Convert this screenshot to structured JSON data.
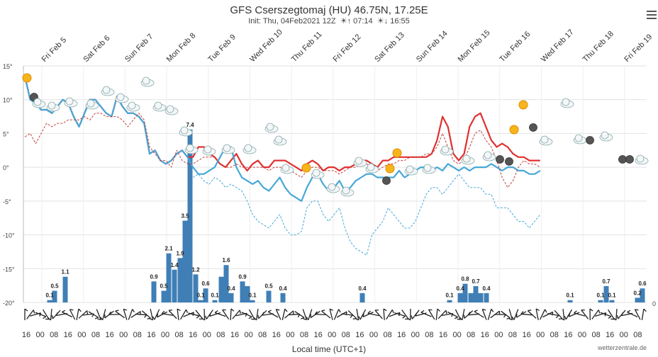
{
  "header": {
    "title": "GFS Cserszegtomaj (HU) 46.75N, 17.25E",
    "init": "Init: Thu, 04Feb2021 12Z",
    "sunrise": "07:14",
    "sunset": "16:55"
  },
  "footer": {
    "xlabel": "Local time (UTC+1)",
    "credit": "wetterzentrale.de"
  },
  "chart_data": {
    "type": "line",
    "title": "GFS Cserszegtomaj (HU) 46.75N, 17.25E",
    "xlabel": "Local time (UTC+1)",
    "day_labels": [
      "Fri Feb 5",
      "Sat Feb 6",
      "Sun Feb 7",
      "Mon Feb 8",
      "Tue Feb 9",
      "Wed Feb 10",
      "Thu Feb 11",
      "Fri Feb 12",
      "Sat Feb 13",
      "Sun Feb 14",
      "Mon Feb 15",
      "Tue Feb 16",
      "Wed Feb 17",
      "Thu Feb 18",
      "Fri Feb 19"
    ],
    "hour_ticks": [
      "16",
      "00",
      "08",
      "16",
      "00",
      "08",
      "16",
      "00",
      "08",
      "16",
      "00",
      "08",
      "16",
      "00",
      "08",
      "16",
      "00",
      "08",
      "16",
      "00",
      "08",
      "16",
      "00",
      "08",
      "16",
      "00",
      "08",
      "16",
      "00",
      "08",
      "16",
      "00",
      "08",
      "16",
      "00",
      "08",
      "16",
      "00",
      "08",
      "16",
      "00",
      "08",
      "16",
      "00",
      "08"
    ],
    "y_ticks": [
      "15°",
      "10°",
      "5°",
      "0°",
      "-5°",
      "-10°",
      "-15°",
      "-20°"
    ],
    "ylim": [
      -20,
      15
    ],
    "right_axis_label": "0",
    "hours_start": 16,
    "step_hours": 6,
    "series": [
      {
        "name": "Temperature 2m (°C)",
        "color": "#e03030",
        "values": [
          13.5,
          10,
          9.5,
          8.5,
          8.5,
          8,
          9,
          10,
          9.5,
          7.5,
          6,
          8,
          10,
          10,
          9,
          8,
          7.5,
          10.5,
          9,
          8,
          8,
          7.5,
          6.5,
          2,
          2.5,
          1,
          0.5,
          1,
          2,
          2.5,
          1.5,
          1.5,
          3,
          3,
          2,
          1.5,
          0.5,
          0,
          1,
          2,
          0.5,
          -0.5,
          0.5,
          1,
          0,
          0,
          1,
          1,
          1,
          0.5,
          0,
          -0.5,
          0.5,
          1,
          0.5,
          -0.5,
          0,
          0,
          -0.5,
          0,
          0,
          0.5,
          1,
          1,
          0.5,
          0,
          1,
          1,
          1.5,
          1.5,
          1.5,
          1.5,
          1.5,
          1.5,
          1.5,
          2,
          4,
          7.5,
          6,
          2,
          1,
          2,
          6,
          7.5,
          8,
          6,
          4,
          3,
          3.5,
          3,
          2,
          1.5,
          1.5,
          1,
          1,
          1
        ]
      },
      {
        "name": "Temperature 850hPa (°C)",
        "color": "#46a8d8",
        "values": [
          13.5,
          10,
          9.5,
          8.5,
          8.5,
          8,
          9,
          10,
          9.5,
          7.5,
          6,
          8,
          10,
          10,
          9,
          8,
          7.5,
          10.5,
          9,
          8,
          8,
          7.5,
          6.5,
          2,
          2.5,
          1,
          0.5,
          1,
          2,
          2.5,
          1.5,
          0,
          -1,
          -1,
          -0.5,
          0,
          1.5,
          3,
          3,
          0,
          -1.5,
          -2,
          -2.5,
          -2,
          -3,
          -3.5,
          -2.5,
          -1.5,
          -3,
          -4,
          -4.5,
          -5,
          -3,
          -1.5,
          -1,
          -2.5,
          -3.5,
          -3,
          -2,
          -3.5,
          -3,
          -2,
          -1.5,
          -1,
          -1,
          -1.5,
          -1.5,
          -1.5,
          -1.5,
          -0.5,
          -1.5,
          -1,
          -0.5,
          0,
          0,
          -0.5,
          0,
          -0.5,
          0.5,
          0,
          -0.5,
          0,
          -0.5,
          0,
          0,
          0,
          0.5,
          0,
          -0.5,
          0,
          0,
          -0.5,
          -0.5,
          -1,
          -1,
          -0.5
        ]
      },
      {
        "name": "Dew point (°C)",
        "color": "#c04040",
        "dashed": true,
        "values": [
          4.5,
          5,
          3.5,
          5,
          6.5,
          6,
          6.5,
          6.5,
          7,
          7,
          7,
          7.5,
          7,
          8,
          8,
          7.5,
          7.5,
          7.5,
          7,
          6,
          7,
          8,
          7,
          3,
          2,
          1,
          1,
          0,
          2.5,
          1,
          0.5,
          0.5,
          1,
          1.5,
          1.5,
          1.5,
          0.5,
          0,
          0,
          0.5,
          0,
          0,
          0,
          0,
          0,
          -0.5,
          0,
          0,
          0,
          -0.5,
          -1,
          -1.5,
          -0.5,
          0,
          0,
          -0.5,
          -0.5,
          -0.5,
          -1,
          -0.5,
          0,
          0,
          0.5,
          0.5,
          0,
          -0.5,
          0,
          0.5,
          0.5,
          1,
          1,
          1.5,
          1.5,
          1.5,
          2,
          2,
          3,
          5,
          3,
          1,
          0.5,
          1,
          3,
          5,
          5.5,
          4,
          3,
          1,
          -1.5,
          -3,
          -2,
          0,
          1,
          0.5,
          0.5,
          0
        ]
      },
      {
        "name": "Dew point 850hPa (°C)",
        "color": "#46a8d8",
        "dashed": true,
        "values": [
          null,
          null,
          null,
          null,
          null,
          null,
          null,
          null,
          null,
          null,
          null,
          null,
          null,
          null,
          null,
          null,
          null,
          null,
          null,
          null,
          null,
          null,
          null,
          null,
          null,
          null,
          null,
          null,
          null,
          null,
          null,
          -1.5,
          -1,
          -2,
          -2.5,
          -1.5,
          -2,
          -3,
          -2.5,
          -3,
          -3.5,
          -5,
          -7,
          -8,
          -8.5,
          -9,
          -8,
          -7,
          -9,
          -10,
          -10,
          -9.5,
          -6,
          -5,
          -5,
          -7,
          -8,
          -7,
          -6,
          -9,
          -11,
          -12,
          -12.5,
          -13,
          -10,
          -9,
          -8,
          -6,
          -7,
          -8,
          -9,
          -9,
          -8,
          -6,
          -4,
          -3,
          -3,
          -4,
          -3,
          -2,
          -1,
          -2,
          -3,
          -3,
          -3,
          -4,
          -4,
          -6,
          -6,
          -6,
          -7,
          -8,
          -8,
          -9,
          -8,
          -7
        ]
      }
    ],
    "precipitation": {
      "name": "Precipitation (mm/6h)",
      "color": "#3f7fb6",
      "bars": [
        {
          "x": 70,
          "v": 0.1
        },
        {
          "x": 77,
          "v": 0.5
        },
        {
          "x": 92,
          "v": 1.1
        },
        {
          "x": 217,
          "v": 0.9
        },
        {
          "x": 231,
          "v": 0.5
        },
        {
          "x": 238,
          "v": 2.1
        },
        {
          "x": 246,
          "v": 1.4
        },
        {
          "x": 254,
          "v": 1.9
        },
        {
          "x": 261,
          "v": 3.5
        },
        {
          "x": 268,
          "v": 7.4
        },
        {
          "x": 276,
          "v": 1.2
        },
        {
          "x": 283,
          "v": 0.1
        },
        {
          "x": 290,
          "v": 0.6
        },
        {
          "x": 303,
          "v": 0.1
        },
        {
          "x": 312,
          "v": 1.1
        },
        {
          "x": 319,
          "v": 1.6
        },
        {
          "x": 326,
          "v": 0.4
        },
        {
          "x": 342,
          "v": 0.9
        },
        {
          "x": 349,
          "v": 0.7
        },
        {
          "x": 356,
          "v": 0.1
        },
        {
          "x": 379,
          "v": 0.5
        },
        {
          "x": 399,
          "v": 0.4
        },
        {
          "x": 511,
          "v": 0.4
        },
        {
          "x": 634,
          "v": 0.1
        },
        {
          "x": 649,
          "v": 0.4
        },
        {
          "x": 656,
          "v": 0.8
        },
        {
          "x": 664,
          "v": 0.4
        },
        {
          "x": 671,
          "v": 0.7
        },
        {
          "x": 678,
          "v": 0.4
        },
        {
          "x": 686,
          "v": 0.4
        },
        {
          "x": 804,
          "v": 0.1
        },
        {
          "x": 847,
          "v": 0.1
        },
        {
          "x": 855,
          "v": 0.7
        },
        {
          "x": 863,
          "v": 0.1
        },
        {
          "x": 899,
          "v": 0.2
        },
        {
          "x": 906,
          "v": 0.6
        }
      ],
      "labels_shown": [
        "0.1",
        "0.5",
        "1.1",
        "0.9",
        "0.5",
        "2.1",
        "1.4",
        "1.9",
        "3.5",
        "7.4",
        "1.2",
        "0.1",
        "0.6",
        "0.1",
        "1.6",
        "0.4",
        "0.9",
        "0.1",
        "0.5",
        "0.4",
        "0.4",
        "0.1",
        "0.4",
        "0.8",
        "0.7",
        "0.4",
        "0.1",
        "0.1",
        "0.7",
        "0.1",
        "0.2",
        "0.6"
      ]
    }
  }
}
